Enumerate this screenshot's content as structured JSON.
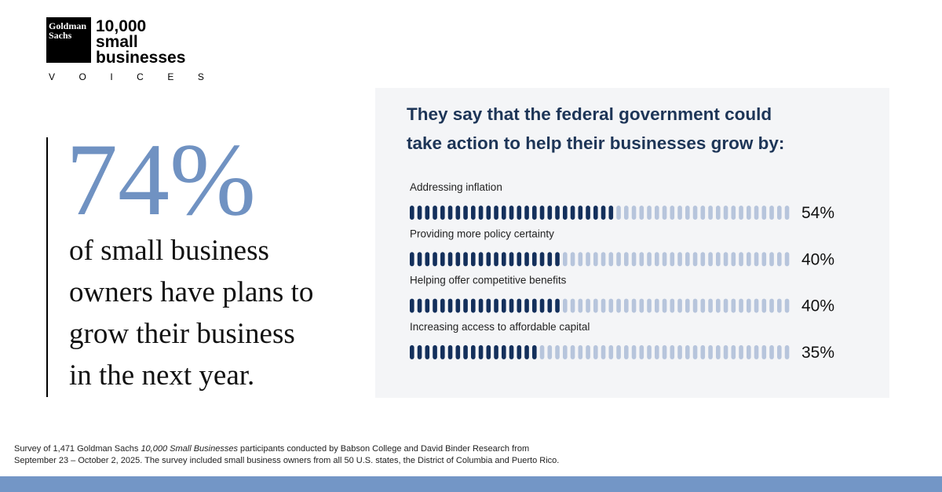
{
  "logo": {
    "mark": [
      "Goldman",
      "Sachs"
    ],
    "name": [
      "10,000",
      "small",
      "businesses"
    ],
    "tagline": "VOICES"
  },
  "headline": {
    "stat": "74%",
    "lines": [
      "of small business",
      "owners have plans to",
      "grow their business",
      "in the next year."
    ]
  },
  "chart_data": {
    "type": "bar",
    "title": [
      "They say that the federal government could",
      "take action to help their businesses grow by:"
    ],
    "categories": [
      "Addressing inflation",
      "Providing more policy certainty",
      "Helping offer competitive benefits",
      "Increasing access to affordable capital"
    ],
    "values": [
      54,
      40,
      40,
      35
    ],
    "value_labels": [
      "54%",
      "40%",
      "40%",
      "35%"
    ],
    "xlim": [
      0,
      100
    ],
    "color": "#14305c",
    "empty_color": "#b7c5dc"
  },
  "footnote": {
    "line1_start": "Survey of 1,471 Goldman Sachs ",
    "line1_italic": "10,000 Small Businesses",
    "line1_end": " participants conducted by Babson College and David Binder Research from",
    "line2": "September 23 – October 2, 2025. The survey included small business owners from all 50 U.S. states, the District of Columbia and Puerto Rico."
  }
}
